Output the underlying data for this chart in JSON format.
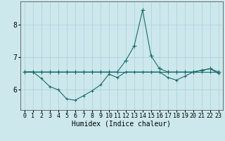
{
  "title": "",
  "xlabel": "Humidex (Indice chaleur)",
  "background_color": "#cce8ec",
  "grid_color": "#aacfd4",
  "line_color": "#1a6b6b",
  "xlim": [
    -0.5,
    23.5
  ],
  "ylim": [
    5.38,
    8.72
  ],
  "yticks": [
    6,
    7,
    8
  ],
  "xticks": [
    0,
    1,
    2,
    3,
    4,
    5,
    6,
    7,
    8,
    9,
    10,
    11,
    12,
    13,
    14,
    15,
    16,
    17,
    18,
    19,
    20,
    21,
    22,
    23
  ],
  "line_flat_x": [
    0,
    1,
    2,
    3,
    4,
    5,
    6,
    7,
    8,
    9,
    10,
    11,
    12,
    13,
    14,
    15,
    16,
    17,
    18,
    19,
    20,
    21,
    22,
    23
  ],
  "line_flat_y": [
    6.55,
    6.55,
    6.55,
    6.55,
    6.55,
    6.55,
    6.55,
    6.55,
    6.55,
    6.55,
    6.55,
    6.55,
    6.55,
    6.55,
    6.55,
    6.55,
    6.55,
    6.55,
    6.55,
    6.55,
    6.55,
    6.55,
    6.55,
    6.55
  ],
  "line_spike_x": [
    0,
    1,
    2,
    3,
    4,
    5,
    6,
    7,
    8,
    9,
    10,
    11,
    12,
    13,
    14,
    15,
    16,
    17,
    18,
    19,
    20,
    21,
    22,
    23
  ],
  "line_spike_y": [
    6.55,
    6.55,
    6.55,
    6.55,
    6.55,
    6.55,
    6.55,
    6.55,
    6.55,
    6.55,
    6.55,
    6.55,
    6.9,
    7.35,
    8.45,
    7.05,
    6.65,
    6.55,
    6.55,
    6.55,
    6.55,
    6.6,
    6.65,
    6.55
  ],
  "line_dip_x": [
    0,
    1,
    2,
    3,
    4,
    5,
    6,
    7,
    8,
    9,
    10,
    11,
    12,
    13,
    14,
    15,
    16,
    17,
    18,
    19,
    20,
    21,
    22,
    23
  ],
  "line_dip_y": [
    6.55,
    6.55,
    6.35,
    6.1,
    6.0,
    5.72,
    5.68,
    5.82,
    5.97,
    6.15,
    6.48,
    6.38,
    6.55,
    6.55,
    6.55,
    6.55,
    6.55,
    6.38,
    6.3,
    6.42,
    6.55,
    6.6,
    6.65,
    6.5
  ],
  "line_width": 0.8,
  "marker_size": 3,
  "tick_fontsize": 6,
  "xlabel_fontsize": 7
}
